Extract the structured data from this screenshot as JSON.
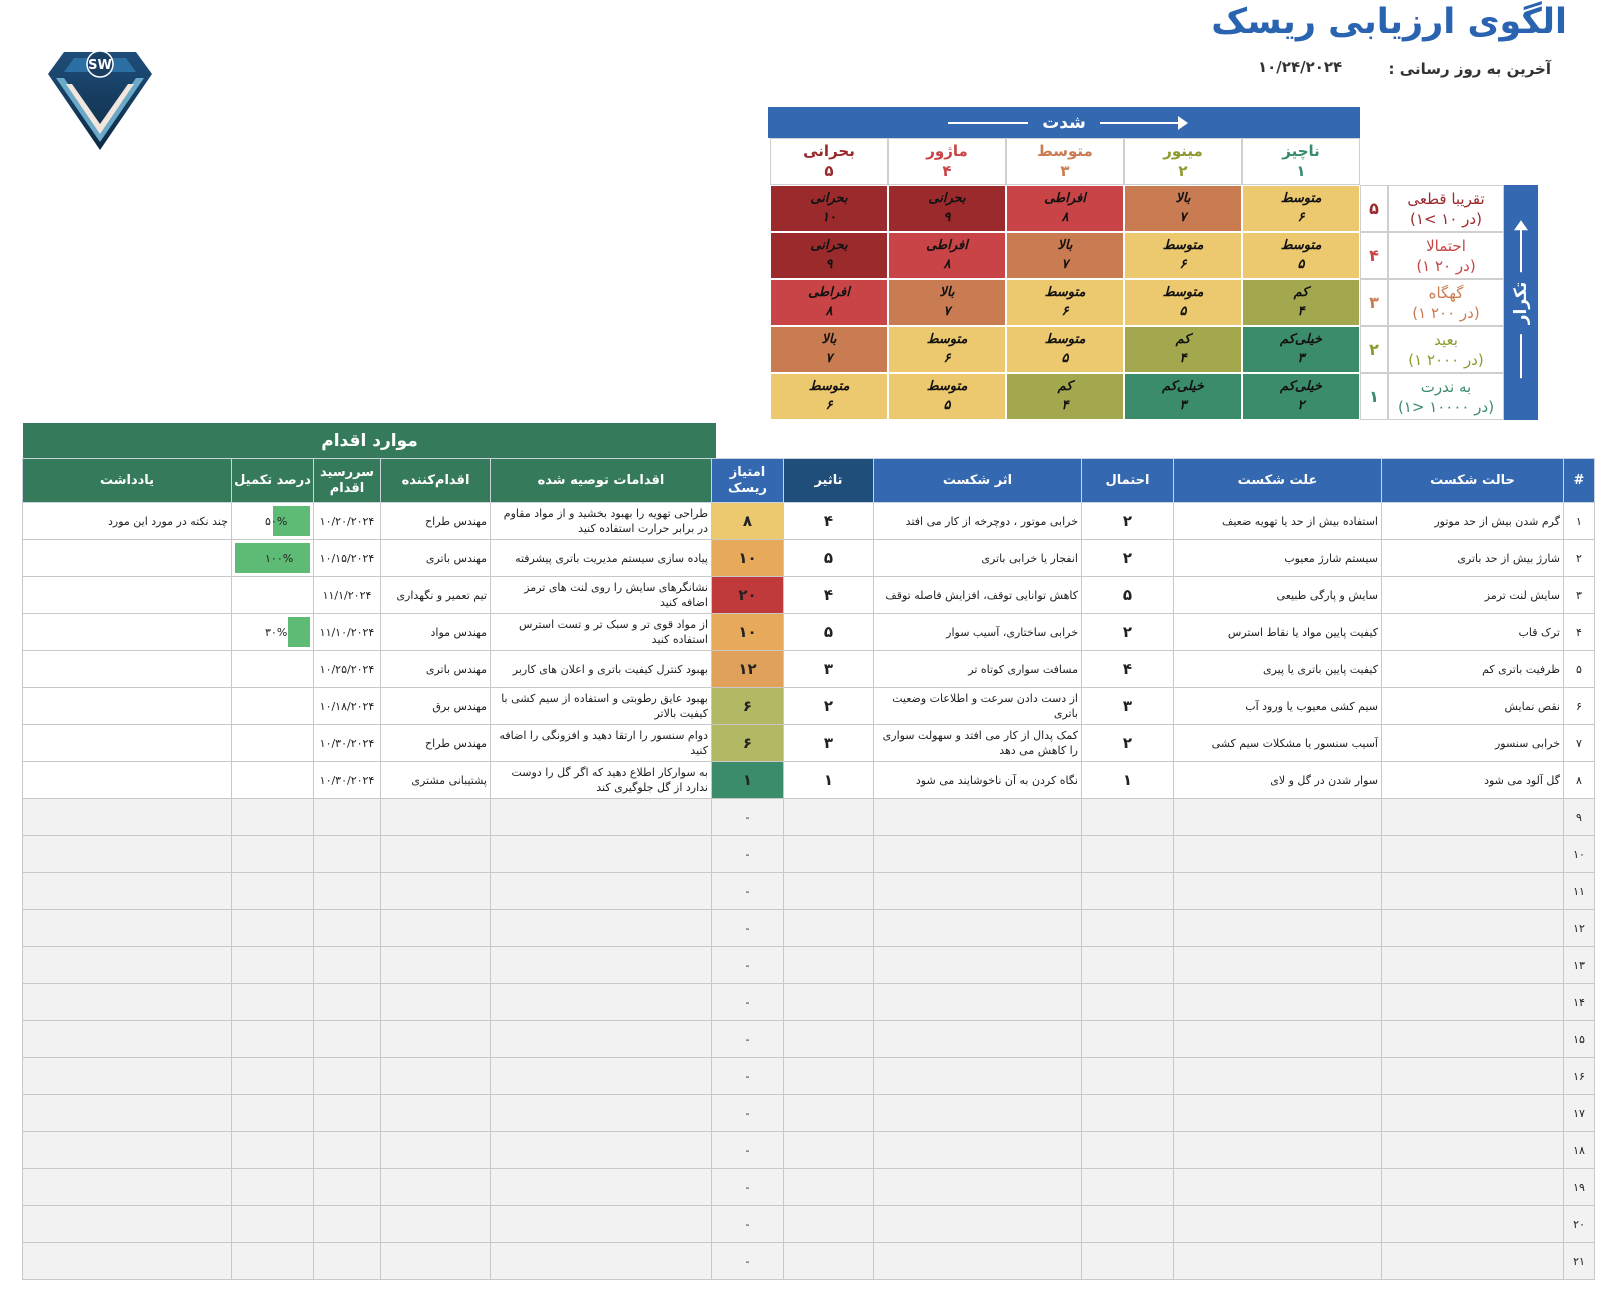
{
  "title": "الگوی ارزیابی ریسک",
  "last_updated_label": "آخرین به روز رسانی :",
  "last_updated_value": "۱۰/۲۴/۲۰۲۴",
  "logo_text": "SW",
  "colors": {
    "header_blue": "#3468b0",
    "header_dark": "#1f4e7a",
    "action_green": "#357a5a",
    "progress_green": "#5dbb76",
    "level_critical": "#9a2a2c",
    "level_extreme": "#c84446",
    "level_high": "#c97c52",
    "level_medium": "#ecc86e",
    "level_low": "#a3a84f",
    "level_very_low": "#3b8c6a"
  },
  "matrix": {
    "severity_title": "شدت",
    "frequency_title": "تکرار",
    "severity": [
      {
        "label": "ناچیز",
        "num": "۱",
        "color": "#3b8c6a"
      },
      {
        "label": "مینور",
        "num": "۲",
        "color": "#8f9a2e"
      },
      {
        "label": "متوسط",
        "num": "۳",
        "color": "#c97c52"
      },
      {
        "label": "ماژور",
        "num": "۴",
        "color": "#c84446"
      },
      {
        "label": "بحرانی",
        "num": "۵",
        "color": "#9a2a2c"
      }
    ],
    "frequency": [
      {
        "num": "۵",
        "label": "تقریبا قطعی",
        "sub": "(۱< در ۱۰)",
        "color": "#9a2a2c"
      },
      {
        "num": "۴",
        "label": "احتمالا",
        "sub": "(۱ در ۲۰)",
        "color": "#c84446"
      },
      {
        "num": "۳",
        "label": "گهگاه",
        "sub": "(۱ در ۲۰۰)",
        "color": "#c97c52"
      },
      {
        "num": "۲",
        "label": "بعید",
        "sub": "(۱ در ۲۰۰۰)",
        "color": "#8f9a2e"
      },
      {
        "num": "۱",
        "label": "به ندرت",
        "sub": "(۱> در ۱۰۰۰۰)",
        "color": "#3b8c6a"
      }
    ],
    "rows": [
      [
        {
          "l": "متوسط",
          "v": "۶",
          "c": "#ecc86e"
        },
        {
          "l": "بالا",
          "v": "۷",
          "c": "#c97c52"
        },
        {
          "l": "افراطی",
          "v": "۸",
          "c": "#c84446"
        },
        {
          "l": "بحرانی",
          "v": "۹",
          "c": "#9a2a2c"
        },
        {
          "l": "بحرانی",
          "v": "۱۰",
          "c": "#9a2a2c"
        }
      ],
      [
        {
          "l": "متوسط",
          "v": "۵",
          "c": "#ecc86e"
        },
        {
          "l": "متوسط",
          "v": "۶",
          "c": "#ecc86e"
        },
        {
          "l": "بالا",
          "v": "۷",
          "c": "#c97c52"
        },
        {
          "l": "افراطی",
          "v": "۸",
          "c": "#c84446"
        },
        {
          "l": "بحرانی",
          "v": "۹",
          "c": "#9a2a2c"
        }
      ],
      [
        {
          "l": "کم",
          "v": "۴",
          "c": "#a3a84f"
        },
        {
          "l": "متوسط",
          "v": "۵",
          "c": "#ecc86e"
        },
        {
          "l": "متوسط",
          "v": "۶",
          "c": "#ecc86e"
        },
        {
          "l": "بالا",
          "v": "۷",
          "c": "#c97c52"
        },
        {
          "l": "افراطی",
          "v": "۸",
          "c": "#c84446"
        }
      ],
      [
        {
          "l": "خیلی‌کم",
          "v": "۳",
          "c": "#3b8c6a"
        },
        {
          "l": "کم",
          "v": "۴",
          "c": "#a3a84f"
        },
        {
          "l": "متوسط",
          "v": "۵",
          "c": "#ecc86e"
        },
        {
          "l": "متوسط",
          "v": "۶",
          "c": "#ecc86e"
        },
        {
          "l": "بالا",
          "v": "۷",
          "c": "#c97c52"
        }
      ],
      [
        {
          "l": "خیلی‌کم",
          "v": "۲",
          "c": "#3b8c6a"
        },
        {
          "l": "خیلی‌کم",
          "v": "۳",
          "c": "#3b8c6a"
        },
        {
          "l": "کم",
          "v": "۴",
          "c": "#a3a84f"
        },
        {
          "l": "متوسط",
          "v": "۵",
          "c": "#ecc86e"
        },
        {
          "l": "متوسط",
          "v": "۶",
          "c": "#ecc86e"
        }
      ]
    ]
  },
  "table": {
    "actions_title": "موارد اقدام",
    "headers": [
      "#",
      "حالت شکست",
      "علت شکست",
      "احتمال",
      "اثر شکست",
      "تاثیر",
      "امتیاز ریسک",
      "اقدامات توصیه شده",
      "اقدام‌کننده",
      "سررسید اقدام",
      "درصد تکمیل",
      "یادداشت"
    ],
    "rows": [
      {
        "n": "۱",
        "mode": "گرم شدن بیش از حد موتور",
        "cause": "استفاده بیش از حد یا تهویه ضعیف",
        "prob": "۲",
        "effect": "خرابی موتور ، دوچرخه از کار می افتد",
        "impact": "۴",
        "score": "۸",
        "score_color": "#ecc86e",
        "action": "طراحی تهویه را بهبود بخشید و از مواد مقاوم در برابر حرارت استفاده کنید",
        "owner": "مهندس طراح",
        "due": "۱۰/۲۰/۲۰۲۴",
        "pct": "۵۰%",
        "pct_val": 0.5,
        "note": "چند نکته در مورد این مورد"
      },
      {
        "n": "۲",
        "mode": "شارژ بیش از حد باتری",
        "cause": "سیستم شارژ معیوب",
        "prob": "۲",
        "effect": "انفجار یا خرابی باتری",
        "impact": "۵",
        "score": "۱۰",
        "score_color": "#e7a95a",
        "action": "پیاده سازی سیستم مدیریت باتری پیشرفته",
        "owner": "مهندس باتری",
        "due": "۱۰/۱۵/۲۰۲۴",
        "pct": "۱۰۰%",
        "pct_val": 1.0,
        "note": ""
      },
      {
        "n": "۳",
        "mode": "سایش لنت ترمز",
        "cause": "سایش و پارگی طبیعی",
        "prob": "۵",
        "effect": "کاهش توانایی توقف، افزایش فاصله توقف",
        "impact": "۴",
        "score": "۲۰",
        "score_color": "#c0393b",
        "action": "نشانگرهای سایش را روی لنت های ترمز اضافه کنید",
        "owner": "تیم تعمیر و نگهداری",
        "due": "۱۱/۱/۲۰۲۴",
        "pct": "",
        "pct_val": 0,
        "note": ""
      },
      {
        "n": "۴",
        "mode": "ترک قاب",
        "cause": "کیفیت پایین مواد یا نقاط استرس",
        "prob": "۲",
        "effect": "خرابی ساختاری، آسیب سوار",
        "impact": "۵",
        "score": "۱۰",
        "score_color": "#e7a95a",
        "action": "از مواد قوی تر و سبک تر و تست استرس استفاده کنید",
        "owner": "مهندس مواد",
        "due": "۱۱/۱۰/۲۰۲۴",
        "pct": "۳۰%",
        "pct_val": 0.3,
        "note": ""
      },
      {
        "n": "۵",
        "mode": "ظرفیت باتری کم",
        "cause": "کیفیت پایین باتری یا پیری",
        "prob": "۴",
        "effect": "مسافت سواری کوتاه تر",
        "impact": "۳",
        "score": "۱۲",
        "score_color": "#e0a25a",
        "action": "بهبود کنترل کیفیت باتری و اعلان های کاربر",
        "owner": "مهندس باتری",
        "due": "۱۰/۲۵/۲۰۲۴",
        "pct": "",
        "pct_val": 0,
        "note": ""
      },
      {
        "n": "۶",
        "mode": "نقص نمایش",
        "cause": "سیم کشی معیوب یا ورود آب",
        "prob": "۳",
        "effect": "از دست دادن سرعت و اطلاعات وضعیت باتری",
        "impact": "۲",
        "score": "۶",
        "score_color": "#b3b865",
        "action": "بهبود عایق رطوبتی و استفاده از سیم کشی با کیفیت بالاتر",
        "owner": "مهندس برق",
        "due": "۱۰/۱۸/۲۰۲۴",
        "pct": "",
        "pct_val": 0,
        "note": ""
      },
      {
        "n": "۷",
        "mode": "خرابی سنسور",
        "cause": "آسیب سنسور یا مشکلات سیم کشی",
        "prob": "۲",
        "effect": "کمک پدال از کار می افتد و سهولت سواری را کاهش می دهد",
        "impact": "۳",
        "score": "۶",
        "score_color": "#b3b865",
        "action": "دوام سنسور را ارتقا دهید و افزونگی را اضافه کنید",
        "owner": "مهندس طراح",
        "due": "۱۰/۳۰/۲۰۲۴",
        "pct": "",
        "pct_val": 0,
        "note": ""
      },
      {
        "n": "۸",
        "mode": "گل آلود می شود",
        "cause": "سوار شدن در گل و لای",
        "prob": "۱",
        "effect": "نگاه کردن به آن ناخوشایند می شود",
        "impact": "۱",
        "score": "۱",
        "score_color": "#3b8c6a",
        "action": "به سوارکار اطلاع دهید که اگر گل را دوست ندارد از گل جلوگیری کند",
        "owner": "پشتیبانی مشتری",
        "due": "۱۰/۳۰/۲۰۲۴",
        "pct": "",
        "pct_val": 0,
        "note": ""
      }
    ],
    "empty_rows": [
      "۹",
      "۱۰",
      "۱۱",
      "۱۲",
      "۱۳",
      "۱۴",
      "۱۵",
      "۱۶",
      "۱۷",
      "۱۸",
      "۱۹",
      "۲۰",
      "۲۱"
    ],
    "empty_score": "-"
  }
}
